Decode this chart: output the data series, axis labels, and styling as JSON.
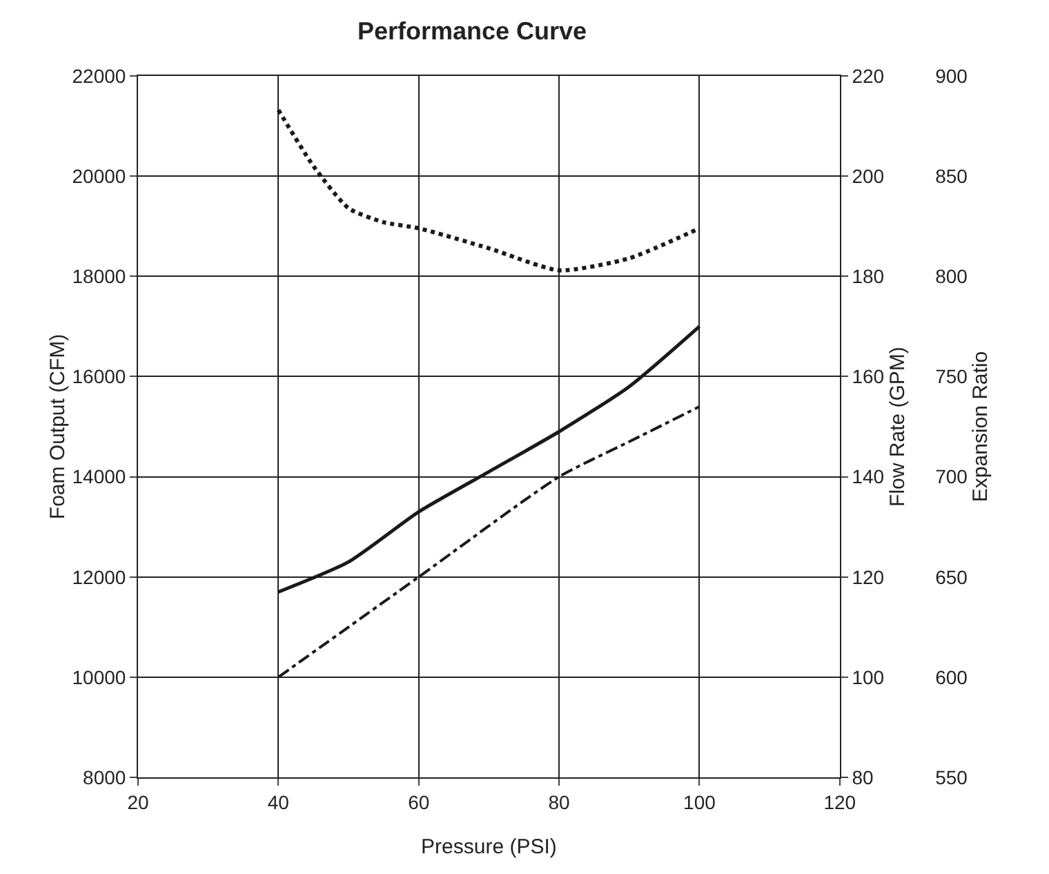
{
  "chart_data": {
    "type": "line",
    "title": "Performance Curve",
    "xlabel": "Pressure (PSI)",
    "ylabel": "Foam Output (CFM)",
    "y2label": "Flow Rate (GPM)",
    "y3label": "Expansion Ratio",
    "xlim": [
      20,
      120
    ],
    "xticks": [
      20,
      40,
      60,
      80,
      100,
      120
    ],
    "ylim": [
      8000,
      22000
    ],
    "yticks": [
      8000,
      10000,
      12000,
      14000,
      16000,
      18000,
      20000,
      22000
    ],
    "y2lim": [
      80,
      220
    ],
    "y2ticks": [
      80,
      100,
      120,
      140,
      160,
      180,
      200,
      220
    ],
    "y3lim": [
      550,
      900
    ],
    "y3ticks": [
      550,
      600,
      650,
      700,
      750,
      800,
      850,
      900
    ],
    "grid": true,
    "series": [
      {
        "color": "#1a1a1a",
        "line_style": "solid",
        "x": [
          40,
          50,
          60,
          70,
          80,
          90,
          100
        ],
        "values": [
          11700,
          12300,
          13300,
          14100,
          14900,
          15800,
          17000
        ]
      },
      {
        "color": "#1a1a1a",
        "line_style": "dashed",
        "axis": "y2",
        "x": [
          40,
          60,
          80,
          90,
          100
        ],
        "values": [
          100,
          120,
          140,
          147,
          154
        ]
      },
      {
        "color": "#1a1a1a",
        "line_style": "dotted",
        "axis": "y3",
        "x": [
          40,
          45,
          50,
          55,
          60,
          70,
          80,
          90,
          100
        ],
        "values": [
          883,
          855,
          834,
          827,
          824,
          814,
          803,
          809,
          824
        ]
      }
    ]
  }
}
